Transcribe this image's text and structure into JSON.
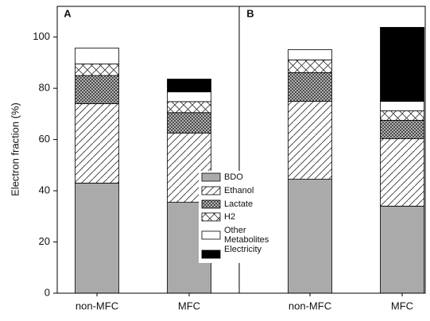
{
  "chart_data": {
    "type": "bar",
    "stacked": true,
    "y_label": "Electron fraction (%)",
    "ylim": [
      0,
      112
    ],
    "yticks": [
      0,
      20,
      40,
      60,
      80,
      100
    ],
    "panels": [
      {
        "title": "A",
        "categories": [
          "non-MFC",
          "MFC"
        ]
      },
      {
        "title": "B",
        "categories": [
          "non-MFC",
          "MFC"
        ]
      }
    ],
    "series": [
      {
        "name": "BDO",
        "color": "#aaaaaa",
        "pattern": "solid",
        "values": [
          43,
          35.5,
          44.5,
          34
        ]
      },
      {
        "name": "Ethanol",
        "color": "#333333",
        "pattern": "diagonal",
        "values": [
          31,
          27,
          30.4,
          26.3
        ]
      },
      {
        "name": "Lactate",
        "color": "#333333",
        "pattern": "crosshatch",
        "values": [
          11,
          8,
          11.2,
          7.2
        ]
      },
      {
        "name": "H2",
        "color": "#333333",
        "pattern": "cross",
        "values": [
          4.5,
          4.3,
          5,
          3.7
        ]
      },
      {
        "name": "Other Metabolites",
        "color": "#ffffff",
        "pattern": "solid",
        "values": [
          6.2,
          3.8,
          4,
          3.7
        ]
      },
      {
        "name": "Electricity",
        "color": "#000000",
        "pattern": "solid",
        "values": [
          0,
          5,
          0,
          28.9
        ]
      }
    ]
  }
}
